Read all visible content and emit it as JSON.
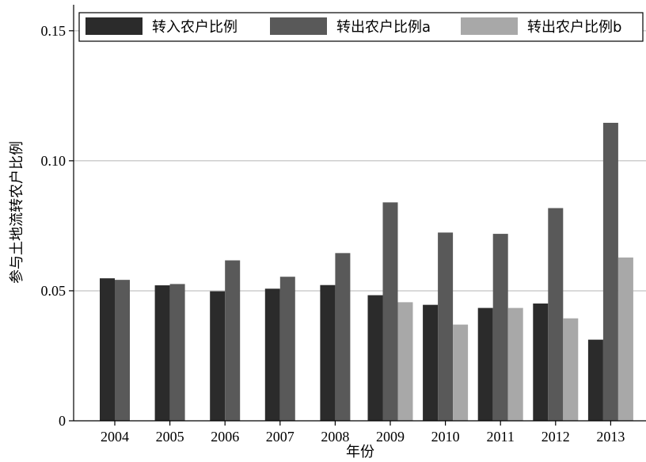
{
  "chart_data": {
    "type": "bar",
    "title": "",
    "xlabel": "年份",
    "ylabel": "参与土地流转农户比例",
    "ylim": [
      0,
      0.16
    ],
    "yticks": [
      0,
      0.05,
      0.1,
      0.15
    ],
    "ytick_labels": [
      "0",
      "0.05",
      "0.10",
      "0.15"
    ],
    "grid": "horizontal",
    "legend_position": "top",
    "categories": [
      "2004",
      "2005",
      "2006",
      "2007",
      "2008",
      "2009",
      "2010",
      "2011",
      "2012",
      "2013"
    ],
    "series": [
      {
        "name": "转入农户比例",
        "color": "#2b2b2b",
        "values": [
          0.0548,
          0.0521,
          0.0498,
          0.0508,
          0.0522,
          0.0483,
          0.0446,
          0.0434,
          0.0451,
          0.0312
        ]
      },
      {
        "name": "转出农户比例a",
        "color": "#595959",
        "values": [
          0.0542,
          0.0526,
          0.0617,
          0.0554,
          0.0645,
          0.084,
          0.0724,
          0.0719,
          0.0818,
          0.1146
        ]
      },
      {
        "name": "转出农户比例b",
        "color": "#a8a8a8",
        "values": [
          null,
          null,
          null,
          null,
          null,
          0.0456,
          0.037,
          0.0434,
          0.0394,
          0.0628
        ]
      }
    ]
  }
}
